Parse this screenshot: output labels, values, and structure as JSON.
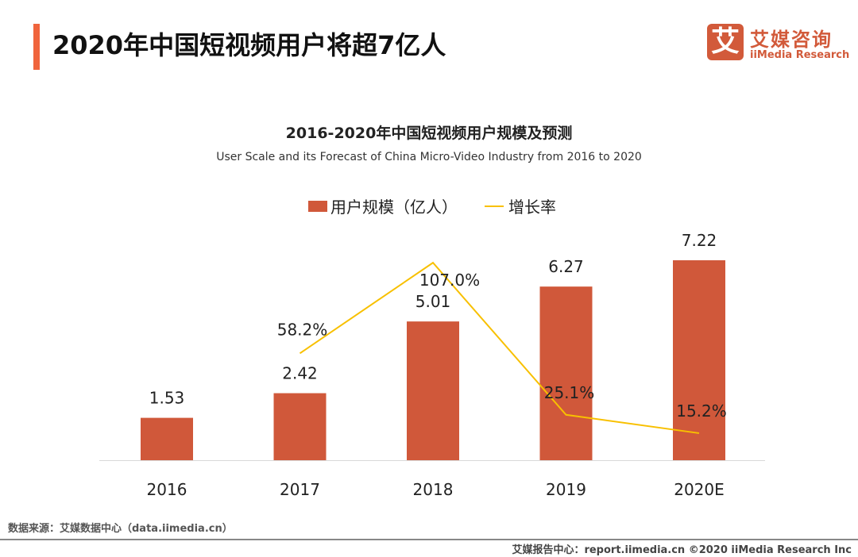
{
  "header": {
    "title": "2020年中国短视频用户将超7亿人"
  },
  "logo": {
    "mark": "艾",
    "cn": "艾媒咨询",
    "en": "iiMedia Research"
  },
  "footer": {
    "source": "数据来源：艾媒数据中心（data.iimedia.cn）",
    "report": "艾媒报告中心：report.iimedia.cn   ©2020  iiMedia Research  Inc"
  },
  "chart_data": {
    "type": "bar+line",
    "title": "2016-2020年中国短视频用户规模及预测",
    "subtitle": "User Scale and its Forecast of China Micro-Video Industry from 2016 to 2020",
    "categories": [
      "2016",
      "2017",
      "2018",
      "2019",
      "2020E"
    ],
    "series": [
      {
        "name": "用户规模（亿人）",
        "type": "bar",
        "color": "#d0583a",
        "values": [
          1.53,
          2.42,
          5.01,
          6.27,
          7.22
        ],
        "labels": [
          "1.53",
          "2.42",
          "5.01",
          "6.27",
          "7.22"
        ]
      },
      {
        "name": "增长率",
        "type": "line",
        "color": "#f8c000",
        "values": [
          null,
          58.2,
          107.0,
          25.1,
          15.2
        ],
        "labels": [
          "",
          "58.2%",
          "107.0%",
          "25.1%",
          "15.2%"
        ]
      }
    ],
    "legend": "top",
    "grid": false
  }
}
